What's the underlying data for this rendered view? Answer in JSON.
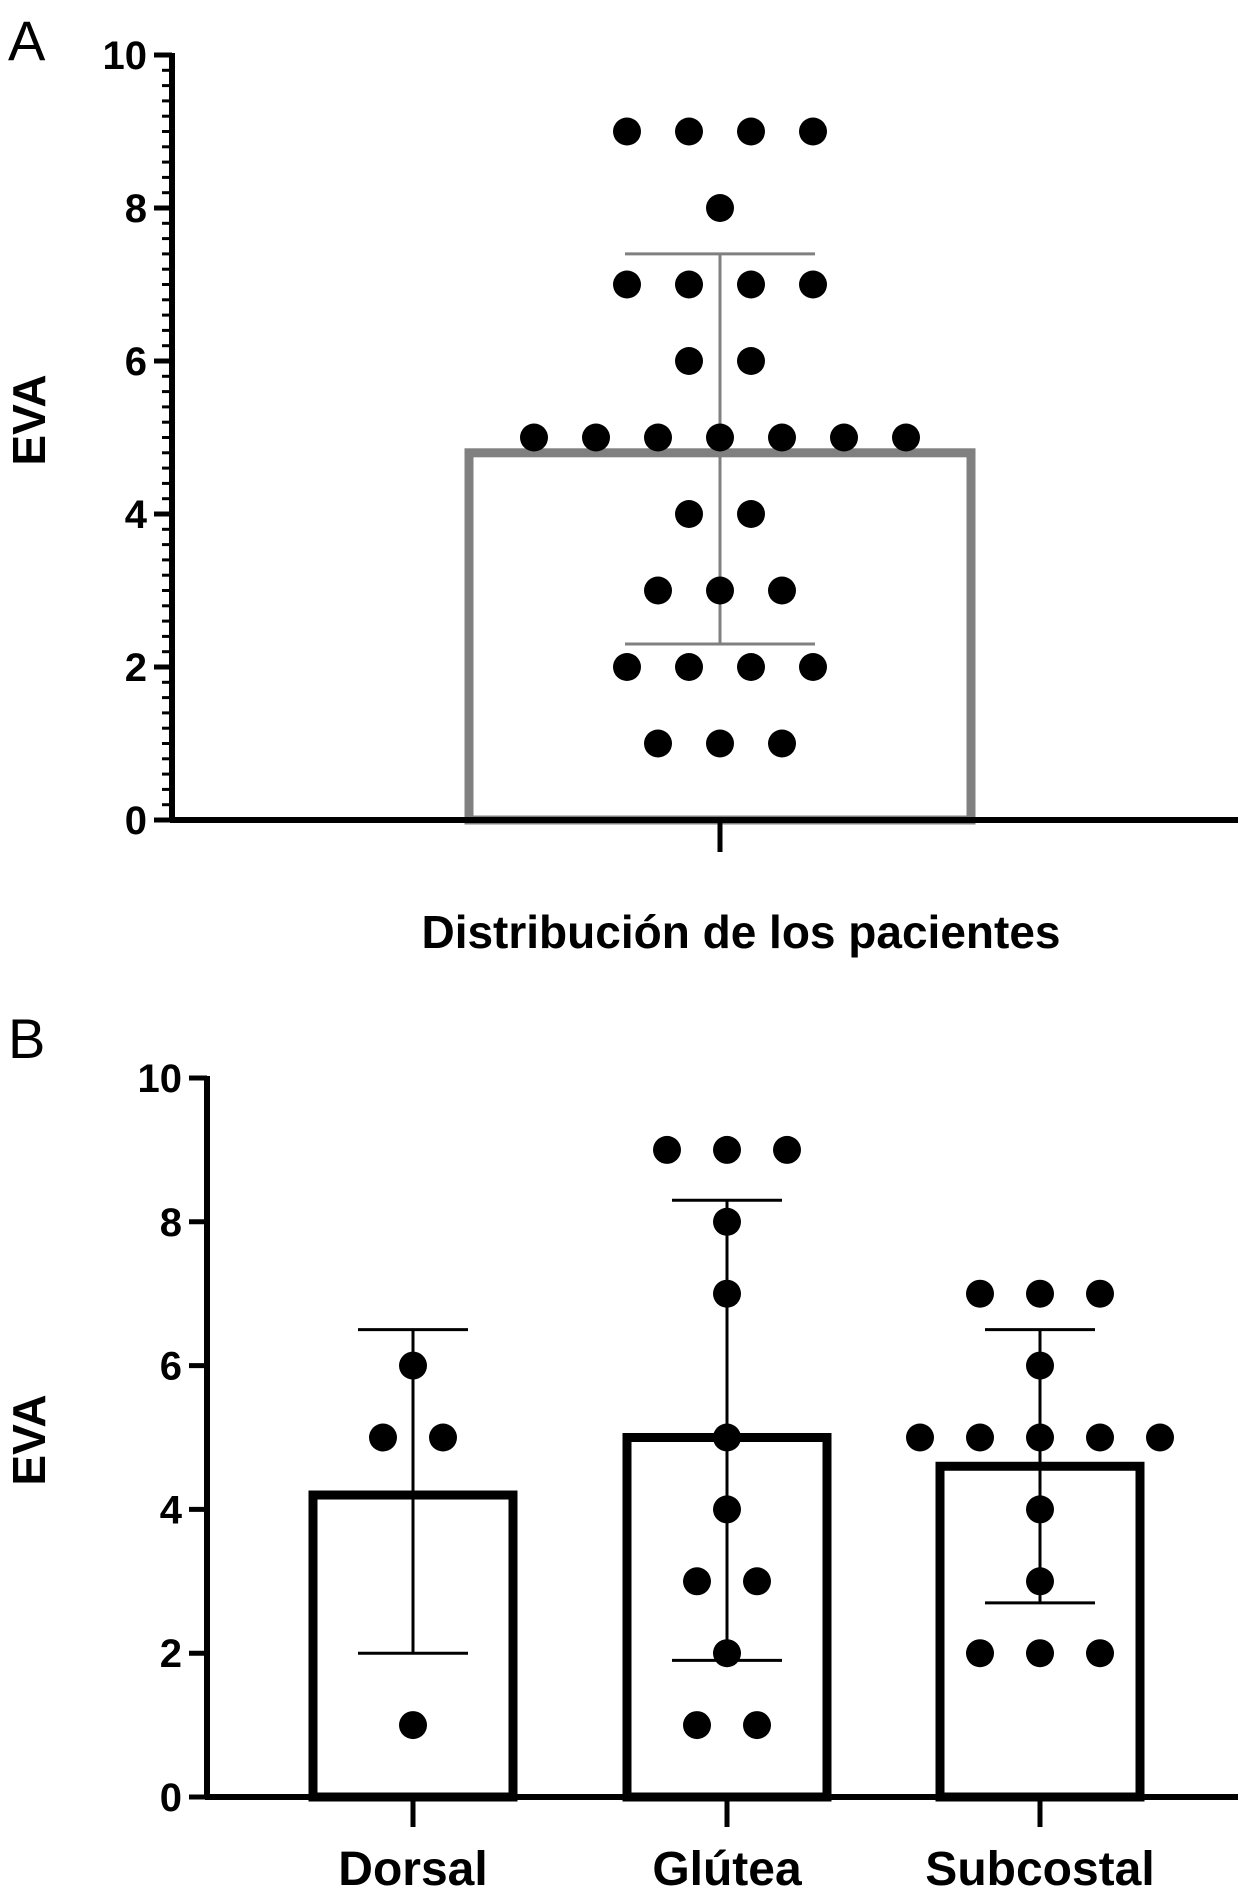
{
  "chart_data": [
    {
      "panel_label": "A",
      "type": "bar",
      "ylabel": "EVA",
      "xlabel": "Distribución de los pacientes",
      "ylim": [
        0,
        10
      ],
      "yticks": [
        "0",
        "2",
        "4",
        "6",
        "8",
        "10"
      ],
      "minor_ticks": true,
      "bar_color": "#808080",
      "categories": [
        ""
      ],
      "mean": [
        4.8
      ],
      "sd_lower": [
        2.3
      ],
      "sd_upper": [
        7.4
      ],
      "points": [
        [
          9,
          9,
          9,
          9,
          8,
          7,
          7,
          7,
          7,
          6,
          6,
          5,
          5,
          5,
          5,
          5,
          5,
          5,
          4,
          4,
          3,
          3,
          3,
          2,
          2,
          2,
          2,
          1,
          1,
          1
        ]
      ]
    },
    {
      "panel_label": "B",
      "type": "bar",
      "ylabel": "EVA",
      "xlabel": "",
      "ylim": [
        0,
        10
      ],
      "yticks": [
        "0",
        "2",
        "4",
        "6",
        "8",
        "10"
      ],
      "minor_ticks": false,
      "bar_color": "#000000",
      "categories": [
        "Dorsal",
        "Glútea",
        "Subcostal"
      ],
      "mean": [
        4.2,
        5.0,
        4.6
      ],
      "sd_lower": [
        2.0,
        1.9,
        2.7
      ],
      "sd_upper": [
        6.5,
        8.3,
        6.5
      ],
      "points": [
        [
          6,
          5,
          5,
          1
        ],
        [
          9,
          9,
          9,
          8,
          7,
          5,
          4,
          3,
          3,
          2,
          1,
          1
        ],
        [
          7,
          7,
          7,
          6,
          5,
          5,
          5,
          5,
          5,
          4,
          3,
          2,
          2,
          2
        ]
      ]
    }
  ]
}
